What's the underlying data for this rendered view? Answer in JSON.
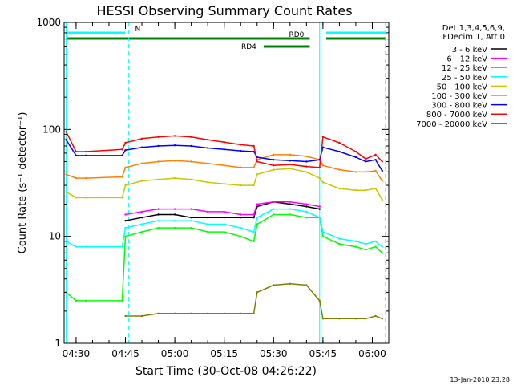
{
  "chart_data": {
    "type": "line",
    "title": "HESSI Observing Summary Count Rates",
    "xlabel": "Start Time (30-Oct-08 04:26:22)",
    "ylabel": "Count Rate (s⁻¹ detector⁻¹)",
    "yscale": "log",
    "xlim": [
      "04:26:22",
      "06:05:00"
    ],
    "ylim": [
      1,
      1000
    ],
    "x_ticks": [
      "04:30",
      "04:45",
      "05:00",
      "05:15",
      "05:30",
      "05:45",
      "06:00"
    ],
    "y_ticks": [
      "1",
      "10",
      "100",
      "1000"
    ],
    "grid": false,
    "legend_position": "right",
    "legend_header": [
      "Det 1,3,4,5,6,9,",
      "FDecim 1, Att 0"
    ],
    "footer_date": "13-Jan-2010 23:28",
    "state_bars": [
      {
        "label": "N",
        "color": "#00ffff",
        "segments": [
          [
            "04:27",
            "04:45"
          ],
          [
            "05:46",
            "06:04"
          ]
        ]
      },
      {
        "label": "RD0",
        "color": "#008000",
        "segments": [
          [
            "04:27",
            "05:41"
          ],
          [
            "05:46",
            "06:04"
          ]
        ]
      },
      {
        "label": "RD4",
        "color": "#008000",
        "segments": [
          [
            "05:27",
            "05:41"
          ]
        ]
      }
    ],
    "vlines": [
      {
        "time": "04:27",
        "color": "#00ffff",
        "style": "solid"
      },
      {
        "time": "04:46",
        "color": "#00ffff",
        "style": "dashed"
      },
      {
        "time": "05:44",
        "color": "#00ffff",
        "style": "solid"
      },
      {
        "time": "06:04",
        "color": "#00ffff",
        "style": "dashed"
      }
    ],
    "x": [
      "04:27",
      "04:30",
      "04:33",
      "04:44",
      "04:45",
      "04:50",
      "04:55",
      "05:00",
      "05:05",
      "05:10",
      "05:15",
      "05:20",
      "05:24",
      "05:25",
      "05:30",
      "05:35",
      "05:40",
      "05:44",
      "05:45",
      "05:50",
      "05:55",
      "05:58",
      "06:01",
      "06:03"
    ],
    "series": [
      {
        "name": "3 - 6 keV",
        "color": "#000000",
        "values": [
          null,
          null,
          null,
          null,
          14,
          15,
          16,
          16,
          15,
          15,
          15,
          15,
          15,
          19,
          21,
          20,
          19,
          18,
          null,
          null,
          null,
          null,
          null,
          null
        ]
      },
      {
        "name": "6 - 12 keV",
        "color": "#ff00ff",
        "values": [
          null,
          null,
          null,
          null,
          16,
          17,
          18,
          18,
          18,
          17,
          17,
          16,
          16,
          20,
          21,
          21,
          20,
          19,
          null,
          null,
          null,
          null,
          null,
          null
        ]
      },
      {
        "name": "12 - 25 keV",
        "color": "#00ff00",
        "values": [
          3,
          2.5,
          2.5,
          2.5,
          10,
          11,
          12,
          12,
          12,
          11,
          11,
          10,
          9,
          13,
          16,
          16,
          15,
          15,
          10,
          8.5,
          8,
          7.5,
          8,
          7
        ]
      },
      {
        "name": "25 - 50 keV",
        "color": "#00ffff",
        "values": [
          9,
          8,
          8,
          8,
          12,
          13,
          14,
          14,
          14,
          13,
          13,
          12,
          11,
          15,
          18,
          18,
          17,
          15,
          11,
          9.5,
          9,
          8.5,
          9,
          8
        ]
      },
      {
        "name": "50 - 100 keV",
        "color": "#c8c800",
        "values": [
          26,
          23,
          23,
          23,
          30,
          33,
          34,
          35,
          34,
          32,
          31,
          30,
          30,
          38,
          42,
          43,
          40,
          35,
          32,
          28,
          27,
          27,
          28,
          22
        ]
      },
      {
        "name": "100 - 300 keV",
        "color": "#ff8000",
        "values": [
          38,
          35,
          35,
          36,
          44,
          48,
          50,
          51,
          50,
          48,
          46,
          44,
          44,
          52,
          58,
          58,
          56,
          52,
          46,
          42,
          40,
          40,
          41,
          33
        ]
      },
      {
        "name": "300 - 800 keV",
        "color": "#0000ff",
        "values": [
          80,
          57,
          57,
          57,
          64,
          68,
          70,
          71,
          70,
          67,
          65,
          63,
          62,
          55,
          52,
          51,
          50,
          52,
          68,
          62,
          55,
          50,
          52,
          41
        ]
      },
      {
        "name": "800 - 7000 keV",
        "color": "#ff0000",
        "values": [
          95,
          62,
          62,
          65,
          75,
          82,
          85,
          87,
          85,
          80,
          76,
          72,
          70,
          50,
          46,
          47,
          45,
          44,
          85,
          75,
          62,
          53,
          58,
          50
        ]
      },
      {
        "name": "7000 - 20000 keV",
        "color": "#808000",
        "values": [
          null,
          null,
          null,
          null,
          1.8,
          1.8,
          1.9,
          1.9,
          1.9,
          1.9,
          1.9,
          1.9,
          1.9,
          3,
          3.5,
          3.6,
          3.5,
          2.5,
          1.7,
          1.7,
          1.7,
          1.7,
          1.8,
          1.7
        ]
      }
    ]
  }
}
